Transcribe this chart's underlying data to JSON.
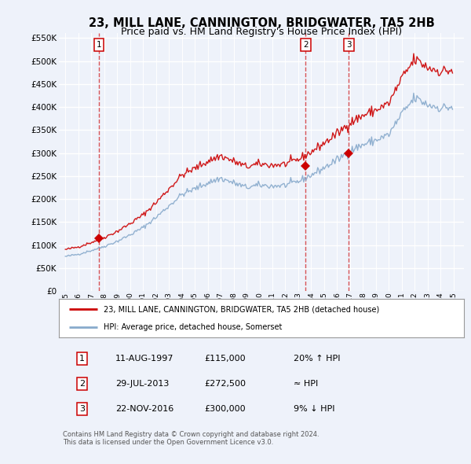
{
  "title": "23, MILL LANE, CANNINGTON, BRIDGWATER, TA5 2HB",
  "subtitle": "Price paid vs. HM Land Registry's House Price Index (HPI)",
  "title_fontsize": 10.5,
  "subtitle_fontsize": 9,
  "sales": [
    {
      "date_num": 1997.61,
      "price": 115000,
      "label": "1"
    },
    {
      "date_num": 2013.57,
      "price": 272500,
      "label": "2"
    },
    {
      "date_num": 2016.9,
      "price": 300000,
      "label": "3"
    }
  ],
  "sale_color": "#cc0000",
  "hpi_color": "#88aacc",
  "ylim": [
    0,
    560000
  ],
  "yticks": [
    0,
    50000,
    100000,
    150000,
    200000,
    250000,
    300000,
    350000,
    400000,
    450000,
    500000,
    550000
  ],
  "ytick_labels": [
    "£0",
    "£50K",
    "£100K",
    "£150K",
    "£200K",
    "£250K",
    "£300K",
    "£350K",
    "£400K",
    "£450K",
    "£500K",
    "£550K"
  ],
  "xlim_start": 1994.5,
  "xlim_end": 2025.8,
  "xtick_years": [
    1995,
    1996,
    1997,
    1998,
    1999,
    2000,
    2001,
    2002,
    2003,
    2004,
    2005,
    2006,
    2007,
    2008,
    2009,
    2010,
    2011,
    2012,
    2013,
    2014,
    2015,
    2016,
    2017,
    2018,
    2019,
    2020,
    2021,
    2022,
    2023,
    2024,
    2025
  ],
  "legend_line1": "23, MILL LANE, CANNINGTON, BRIDGWATER, TA5 2HB (detached house)",
  "legend_line2": "HPI: Average price, detached house, Somerset",
  "table_rows": [
    [
      "1",
      "11-AUG-1997",
      "£115,000",
      "20% ↑ HPI"
    ],
    [
      "2",
      "29-JUL-2013",
      "£272,500",
      "≈ HPI"
    ],
    [
      "3",
      "22-NOV-2016",
      "£300,000",
      "9% ↓ HPI"
    ]
  ],
  "footnote": "Contains HM Land Registry data © Crown copyright and database right 2024.\nThis data is licensed under the Open Government Licence v3.0.",
  "bg_color": "#eef2fa",
  "plot_bg_color": "#eef2fa",
  "grid_color": "#ffffff"
}
